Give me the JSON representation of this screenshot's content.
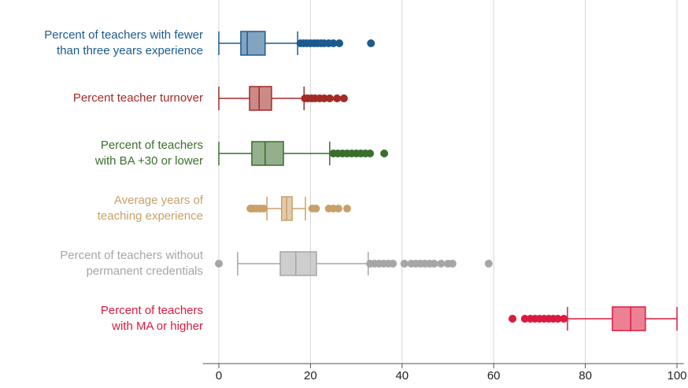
{
  "chart_data": {
    "type": "box",
    "labels": [
      [
        "Percent of teachers with fewer",
        "than three years experience"
      ],
      [
        "Percent teacher turnover"
      ],
      [
        "Percent of teachers",
        "with BA +30 or lower"
      ],
      [
        "Average years of",
        "teaching experience"
      ],
      [
        "Percent of teachers without",
        "permanent credentials"
      ],
      [
        "Percent of teachers",
        "with MA or higher"
      ]
    ],
    "boxes": [
      {
        "color": "#1b5a8e",
        "min": 0,
        "q1": 4.8,
        "median": 6.2,
        "q3": 10.1,
        "max": 17.2,
        "outliers": [
          17.8,
          18.5,
          19.2,
          20,
          20.8,
          21.5,
          22.3,
          23,
          24,
          25,
          26.3,
          33.2
        ]
      },
      {
        "color": "#a32a25",
        "min": 0,
        "q1": 6.7,
        "median": 8.8,
        "q3": 11.5,
        "max": 18.6,
        "outliers": [
          18.8,
          19.5,
          20.3,
          21,
          22,
          23,
          24.2,
          25.8,
          27.3
        ]
      },
      {
        "color": "#3b6e2c",
        "min": 0,
        "q1": 7.2,
        "median": 10.1,
        "q3": 14.1,
        "max": 24.2,
        "outliers": [
          25,
          26,
          27,
          28,
          29,
          30,
          31,
          32,
          33,
          36.1
        ]
      },
      {
        "color": "#c9a068",
        "min": 10.5,
        "q1": 13.7,
        "median": 14.8,
        "q3": 16,
        "max": 18.9,
        "outliers": [
          6.9,
          7.5,
          8.2,
          9,
          9.8,
          20.4,
          21.2,
          24,
          25,
          26.1,
          28
        ]
      },
      {
        "color": "#a6a6a8",
        "min": 4.1,
        "q1": 13.4,
        "median": 16.8,
        "q3": 21.3,
        "max": 32.6,
        "outliers": [
          0,
          33,
          34,
          35,
          36,
          37,
          38,
          40.5,
          42,
          43,
          44,
          45,
          46,
          47,
          48.5,
          50,
          51,
          58.9
        ]
      },
      {
        "color": "#dc1a3e",
        "min": 76.1,
        "q1": 85.9,
        "median": 89.9,
        "q3": 93.1,
        "max": 100,
        "outliers": [
          64.1,
          66.8,
          68,
          69,
          70,
          71,
          72,
          73,
          74,
          75.3
        ]
      }
    ],
    "xlim": [
      -3.5,
      101.5
    ],
    "xticks": [
      0,
      20,
      40,
      60,
      80,
      100
    ],
    "grid": true
  }
}
